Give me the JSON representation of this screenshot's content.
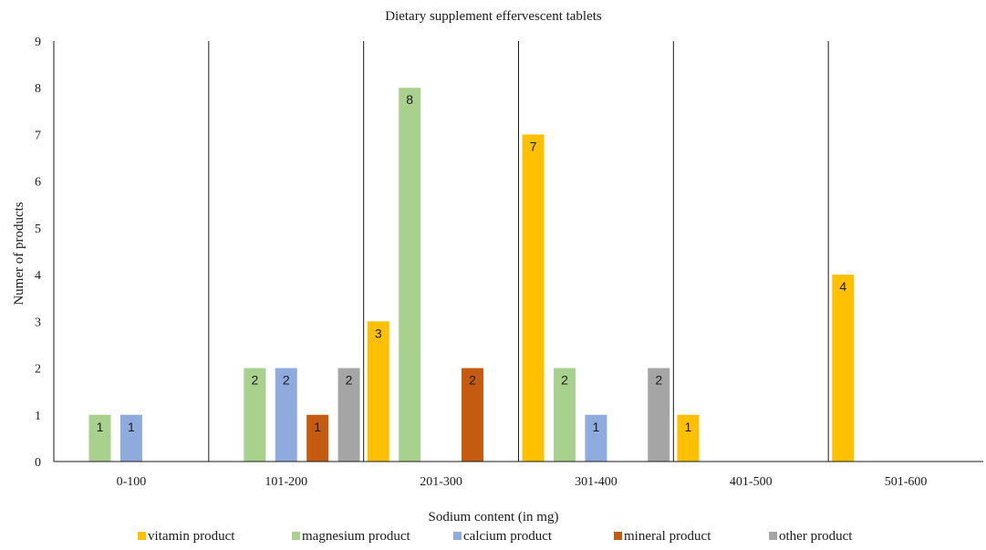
{
  "chart_data": {
    "type": "bar",
    "title": "Dietary supplement effervescent tablets",
    "xlabel": "Sodium content (in mg)",
    "ylabel": "Numer of products",
    "ylim": [
      0,
      9
    ],
    "yticks": [
      "0",
      "1",
      "2",
      "3",
      "4",
      "5",
      "6",
      "7",
      "8",
      "9"
    ],
    "categories": [
      "0-100",
      "101-200",
      "201-300",
      "301-400",
      "401-500",
      "501-600"
    ],
    "legend_position": "bottom",
    "grid": false,
    "series": [
      {
        "name": "vitamin product",
        "color": "#FFC000",
        "values": [
          0,
          0,
          3,
          7,
          1,
          4
        ]
      },
      {
        "name": "magnesium product",
        "color": "#A9D18E",
        "values": [
          1,
          2,
          8,
          2,
          0,
          0
        ]
      },
      {
        "name": "calcium product",
        "color": "#8FAADC",
        "values": [
          1,
          2,
          0,
          1,
          0,
          0
        ]
      },
      {
        "name": "mineral product",
        "color": "#C55A11",
        "values": [
          0,
          1,
          2,
          0,
          0,
          0
        ]
      },
      {
        "name": "other product",
        "color": "#A5A5A5",
        "values": [
          0,
          2,
          0,
          2,
          0,
          0
        ]
      }
    ]
  }
}
